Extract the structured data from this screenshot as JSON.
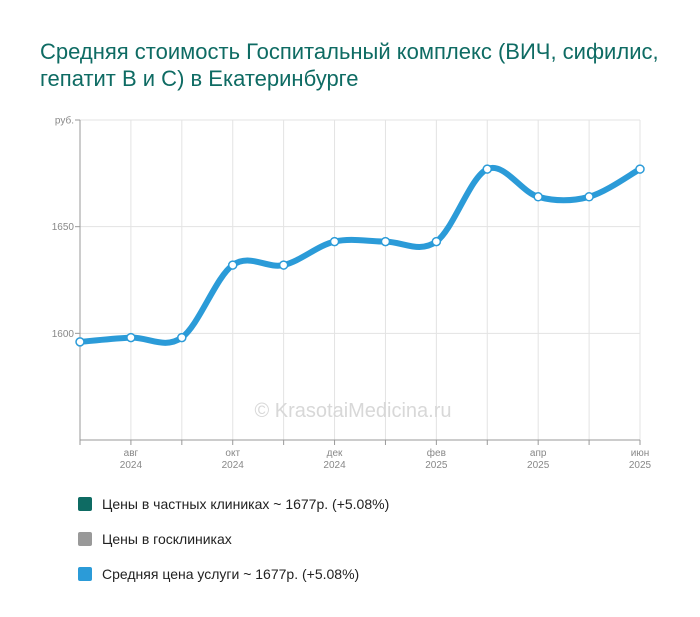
{
  "title": "Средняя стоимость Госпитальный комплекс (ВИЧ, сифилис, гепатит B и C) в Екатеринбурге",
  "watermark": "© KrasotaiMedicina.ru",
  "colors": {
    "title": "#0e6b63",
    "private": "#0e6b63",
    "public": "#999999",
    "average": "#2b9bd8",
    "grid": "#e3e3e3",
    "axis": "#999999"
  },
  "chart_data": {
    "type": "line",
    "y_unit": "руб.",
    "ylim": [
      1550,
      1700
    ],
    "y_ticks": [
      {
        "value": 1700,
        "label": "руб."
      },
      {
        "value": 1650,
        "label": "1650"
      },
      {
        "value": 1600,
        "label": "1600"
      }
    ],
    "x": [
      "2024-07",
      "2024-08",
      "2024-09",
      "2024-10",
      "2024-11",
      "2024-12",
      "2025-01",
      "2025-02",
      "2025-03",
      "2025-04",
      "2025-05",
      "2025-06"
    ],
    "x_tick_labels": [
      {
        "index": 1,
        "month": "авг",
        "year": "2024"
      },
      {
        "index": 3,
        "month": "окт",
        "year": "2024"
      },
      {
        "index": 5,
        "month": "дек",
        "year": "2024"
      },
      {
        "index": 7,
        "month": "фев",
        "year": "2025"
      },
      {
        "index": 9,
        "month": "апр",
        "year": "2025"
      },
      {
        "index": 11,
        "month": "июн",
        "year": "2025"
      }
    ],
    "grid": true,
    "series": [
      {
        "name": "Средняя цена услуги ~ 1677р. (+5.08%)",
        "values": [
          1596,
          1598,
          1598,
          1632,
          1632,
          1643,
          1643,
          1643,
          1677,
          1664,
          1664,
          1677
        ]
      }
    ],
    "legend": {
      "position": "bottom",
      "items": [
        {
          "label": "Цены в частных клиниках ~ 1677р. (+5.08%)",
          "color": "#0e6b63"
        },
        {
          "label": "Цены в госклиниках",
          "color": "#999999"
        },
        {
          "label": "Средняя цена услуги ~ 1677р. (+5.08%)",
          "color": "#2b9bd8"
        }
      ]
    }
  }
}
